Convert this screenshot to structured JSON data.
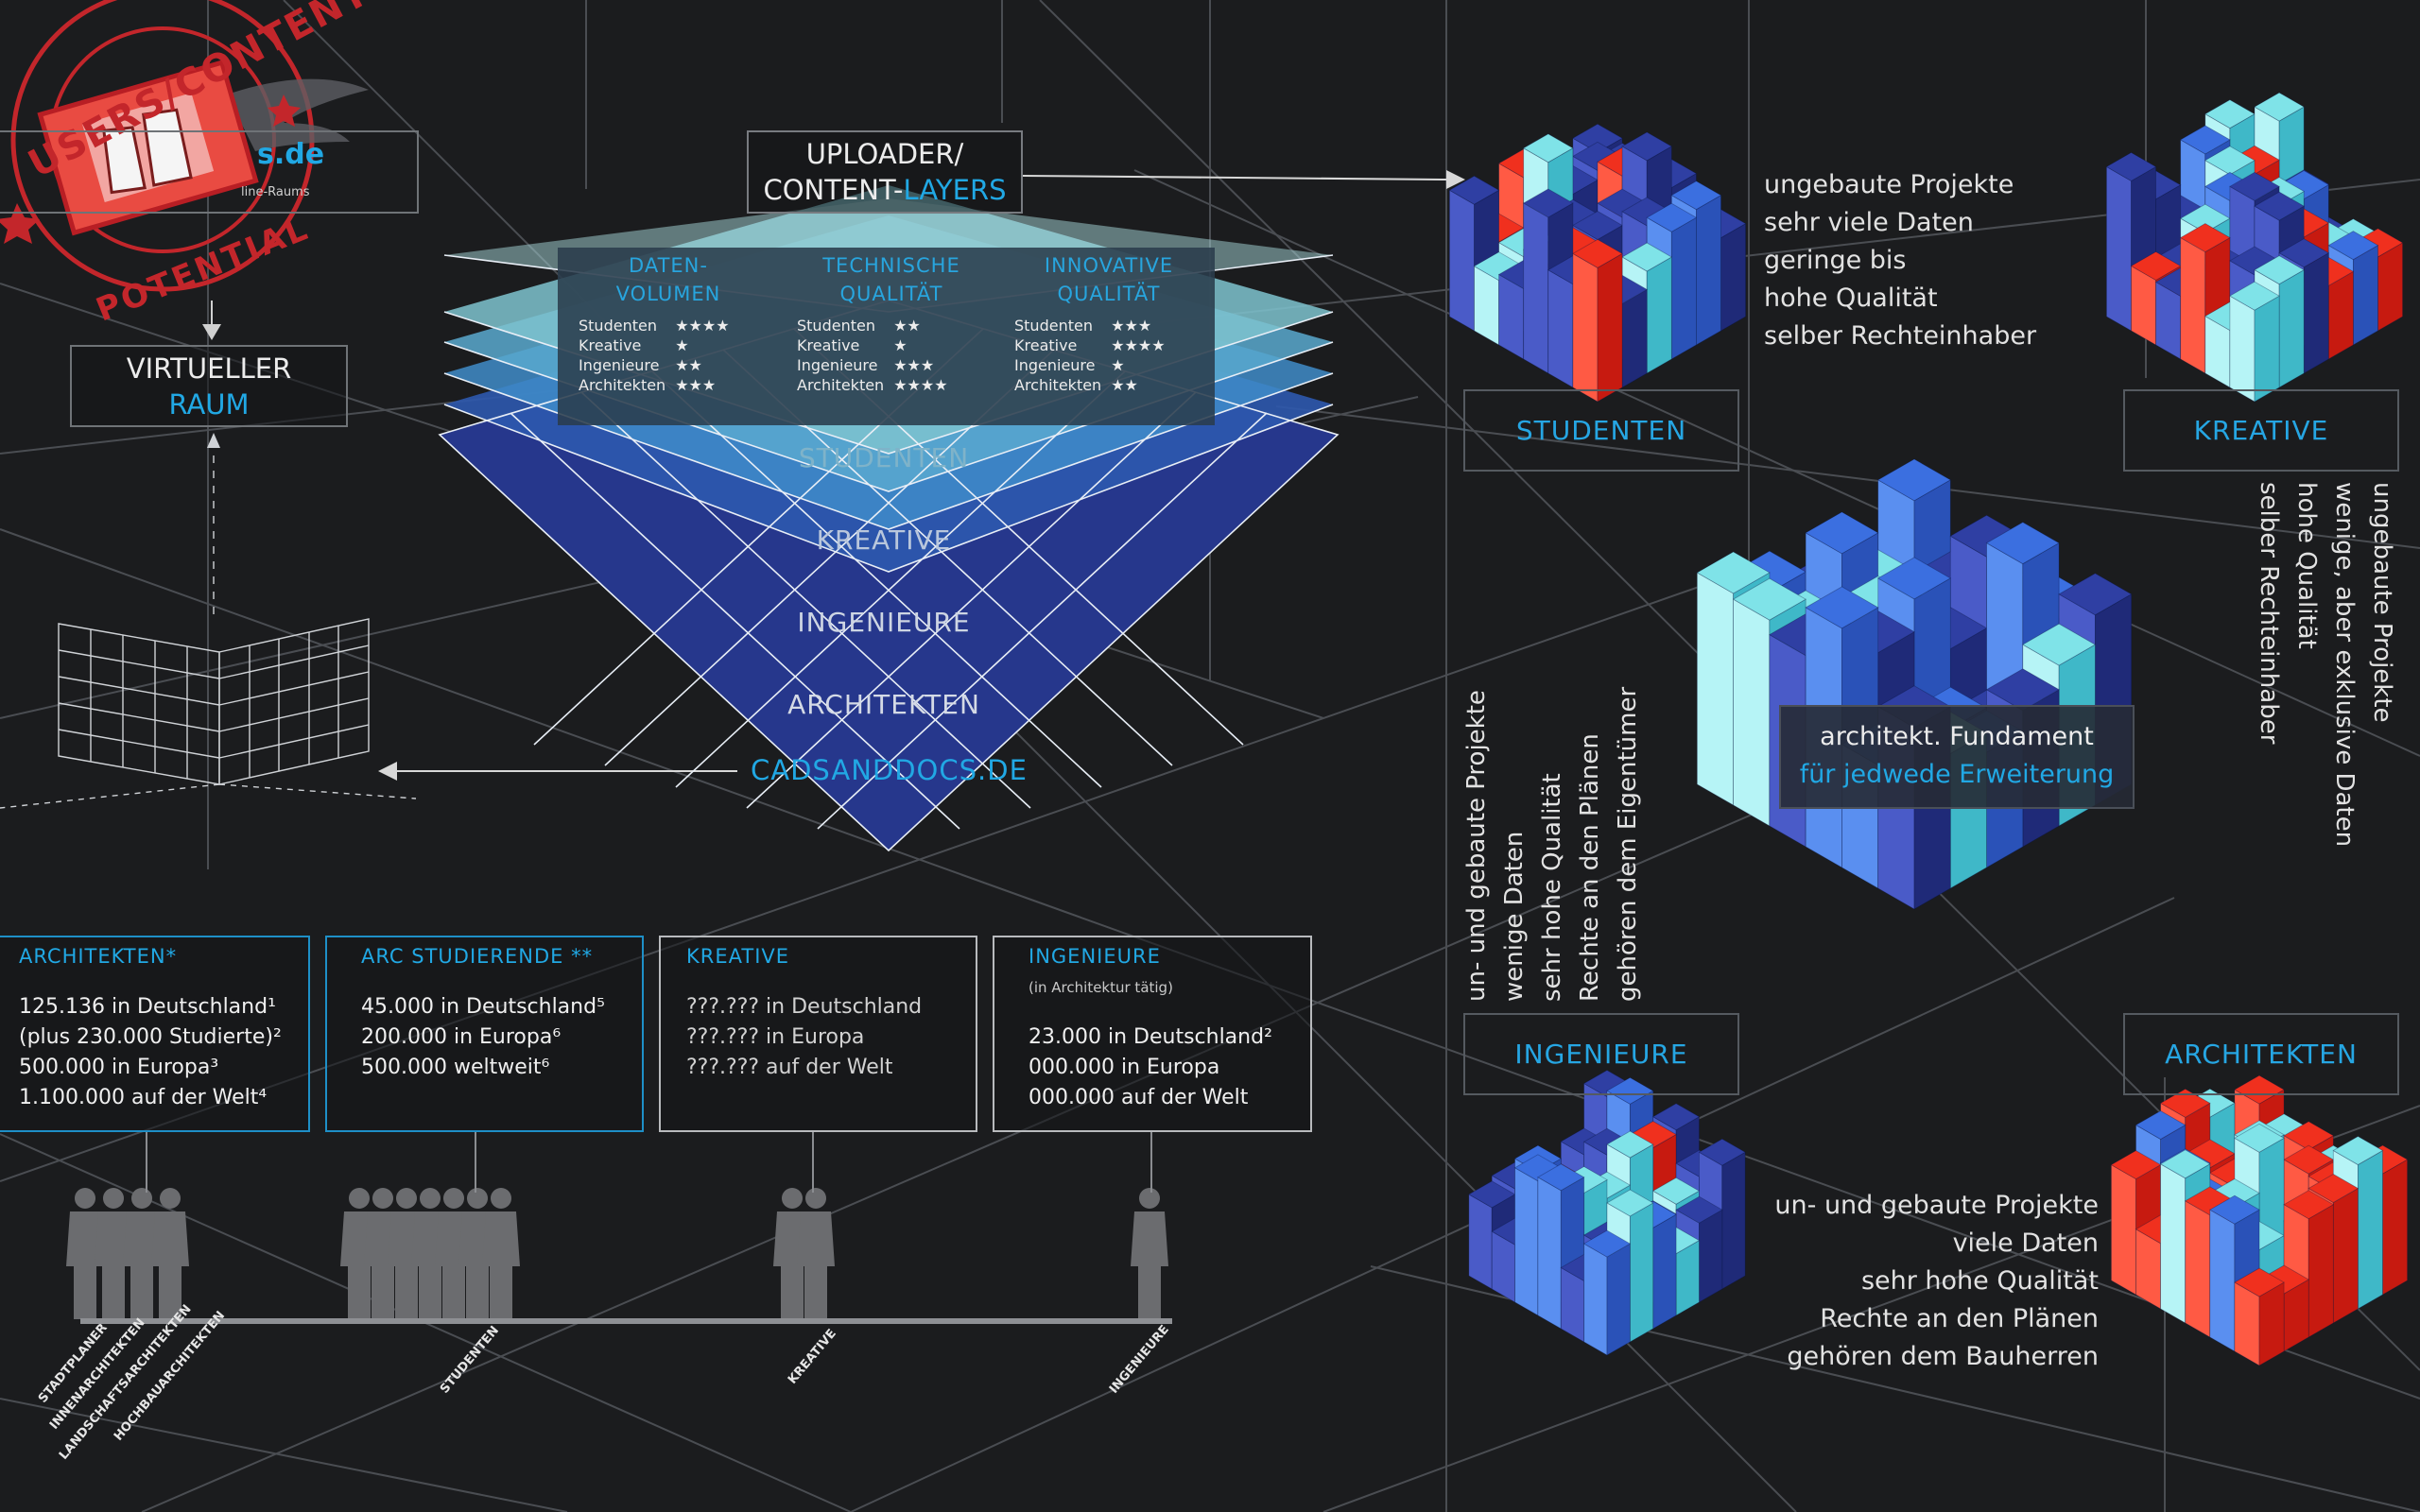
{
  "stamp": {
    "ring_top": "USERS/CONTENT",
    "ring_bottom": "POTENTIAL",
    "fragment_url": "s.de",
    "fragment_sub": "line-Raums"
  },
  "uploader": {
    "line1": "UPLOADER/",
    "line2a": "CONTENT-",
    "line2b": "LAYERS"
  },
  "virtual": {
    "line1": "VIRTUELLER",
    "line2": "RAUM"
  },
  "ratings": [
    {
      "head": [
        "DATEN-",
        "VOLUMEN"
      ],
      "rows": [
        [
          "Studenten",
          "★★★★"
        ],
        [
          "Kreative",
          "★"
        ],
        [
          "Ingenieure",
          "★★"
        ],
        [
          "Architekten",
          "★★★"
        ]
      ]
    },
    {
      "head": [
        "TECHNISCHE",
        "QUALITÄT"
      ],
      "rows": [
        [
          "Studenten",
          "★★"
        ],
        [
          "Kreative",
          "★"
        ],
        [
          "Ingenieure",
          "★★★"
        ],
        [
          "Architekten",
          "★★★★"
        ]
      ]
    },
    {
      "head": [
        "INNOVATIVE",
        "QUALITÄT"
      ],
      "rows": [
        [
          "Studenten",
          "★★★"
        ],
        [
          "Kreative",
          "★★★★"
        ],
        [
          "Ingenieure",
          "★"
        ],
        [
          "Architekten",
          "★★"
        ]
      ]
    }
  ],
  "layers": [
    "STUDENTEN",
    "KREATIVE",
    "INGENIEURE",
    "ARCHITEKTEN"
  ],
  "site_name": "CADSANDDOCS.DE",
  "stats": [
    {
      "head": "ARCHITEKTEN*",
      "sub": "",
      "lines": [
        "125.136 in Deutschland¹",
        "(plus 230.000 Studierte)²",
        "500.000 in Europa³",
        "1.100.000 auf der Welt⁴"
      ]
    },
    {
      "head": "ARC STUDIERENDE **",
      "sub": "",
      "lines": [
        "45.000 in Deutschland⁵",
        "200.000 in Europa⁶",
        "500.000 weltweit⁶"
      ]
    },
    {
      "head": "KREATIVE",
      "sub": "",
      "lines": [
        "???.??? in Deutschland",
        "???.??? in Europa",
        "???.??? auf der Welt"
      ]
    },
    {
      "head": "INGENIEURE",
      "sub": "(in Architektur tätig)",
      "lines": [
        "23.000 in Deutschland²",
        "000.000 in Europa",
        "000.000 auf der Welt"
      ]
    }
  ],
  "axis_labels": [
    "STADTPLANER",
    "INNENARCHITEKTEN",
    "LANDSCHAFTSARCHITEKTEN",
    "HOCHBAUARCHITEKTEN",
    "STUDENTEN",
    "KREATIVE",
    "INGENIEURE"
  ],
  "cubes": {
    "studenten": {
      "label": "STUDENTEN",
      "desc": [
        "ungebaute Projekte",
        "sehr viele Daten",
        "geringe bis",
        "hohe Qualität",
        "selber Rechteinhaber"
      ]
    },
    "kreative": {
      "label": "KREATIVE",
      "desc": [
        "ungebaute Projekte",
        "wenige, aber exklusive Daten",
        "hohe Qualität",
        "selber Rechteinhaber"
      ]
    },
    "ingenieure": {
      "label": "INGENIEURE",
      "desc": [
        "un- und gebaute Projekte",
        "wenige Daten",
        "sehr hohe Qualität",
        "Rechte an den Plänen",
        "gehören dem Eigentümer"
      ]
    },
    "architekten": {
      "label": "ARCHITEKTEN",
      "desc": [
        "un- und gebaute Projekte",
        "viele Daten",
        "sehr hohe Qualität",
        "Rechte an den Plänen",
        "gehören dem Bauherren"
      ]
    },
    "center": {
      "line1": "architekt. Fundament",
      "line2": "für jedwede Erweiterung"
    }
  },
  "colors": {
    "cyan": "#21a8e4",
    "red": "#f0301e",
    "navy": "#2f3fa3",
    "blue": "#3b6fe0",
    "aqua": "#7fe3e8",
    "background": "#1b1c1e"
  }
}
